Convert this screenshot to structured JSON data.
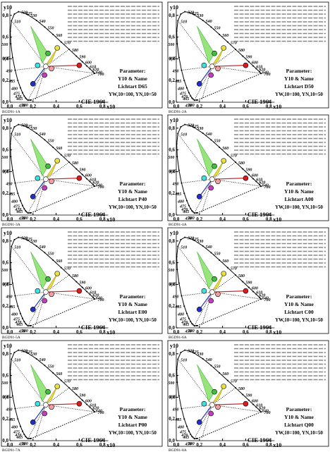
{
  "panels": [
    {
      "code": "BGD91-1A",
      "param_title": "Parameter:",
      "param_name": "Y10 & Name",
      "light": "Lichtart D65",
      "norm": "YW,10=100, YN,10=50"
    },
    {
      "code": "BGD91-2A",
      "param_title": "Parameter:",
      "param_name": "Y10 & Name",
      "light": "Lichtart D50",
      "norm": "YW,10=100, YN,10=50"
    },
    {
      "code": "BGD91-3A",
      "param_title": "Parameter:",
      "param_name": "Y10 & Name",
      "light": "Lichtart P40",
      "norm": "YW,10=100, YN,10=50"
    },
    {
      "code": "BGD91-4A",
      "param_title": "Parameter:",
      "param_name": "Y10 & Name",
      "light": "Lichtart A00",
      "norm": "YW,10=100, YN,10=50"
    },
    {
      "code": "BGD91-5A",
      "param_title": "Parameter:",
      "param_name": "Y10 & Name",
      "light": "Lichtart E00",
      "norm": "YW,10=100, YN,10=50"
    },
    {
      "code": "BGD91-6A",
      "param_title": "Parameter:",
      "param_name": "Y10 & Name",
      "light": "Lichtart C00",
      "norm": "YW,10=100, YN,10=50"
    },
    {
      "code": "BGD91-7A",
      "param_title": "Parameter:",
      "param_name": "Y10 & Name",
      "light": "Lichtart P00",
      "norm": "YW,10=100, YN,10=50"
    },
    {
      "code": "BGD91-8A",
      "param_title": "Parameter:",
      "param_name": "Y10 & Name",
      "light": "Lichtart Q00",
      "norm": "YW,10=100, YN,10=50"
    }
  ],
  "axes": {
    "x_label": "x10",
    "y_label": "y10",
    "diagram_label": "CIE 1964",
    "xticks": [
      "0,0",
      "0,2",
      "0,4",
      "0,6",
      "0,8"
    ],
    "yticks": [
      "0,0",
      "0,2",
      "0,4",
      "0,6",
      "0,8"
    ]
  },
  "wavelengths": [
    "510",
    "520",
    "525",
    "530",
    "540",
    "550",
    "560",
    "570",
    "580",
    "590",
    "600",
    "610",
    "620",
    "640",
    "700",
    "500",
    "495",
    "490",
    "485",
    "480",
    "475",
    "470",
    "465",
    "450",
    "380"
  ]
}
